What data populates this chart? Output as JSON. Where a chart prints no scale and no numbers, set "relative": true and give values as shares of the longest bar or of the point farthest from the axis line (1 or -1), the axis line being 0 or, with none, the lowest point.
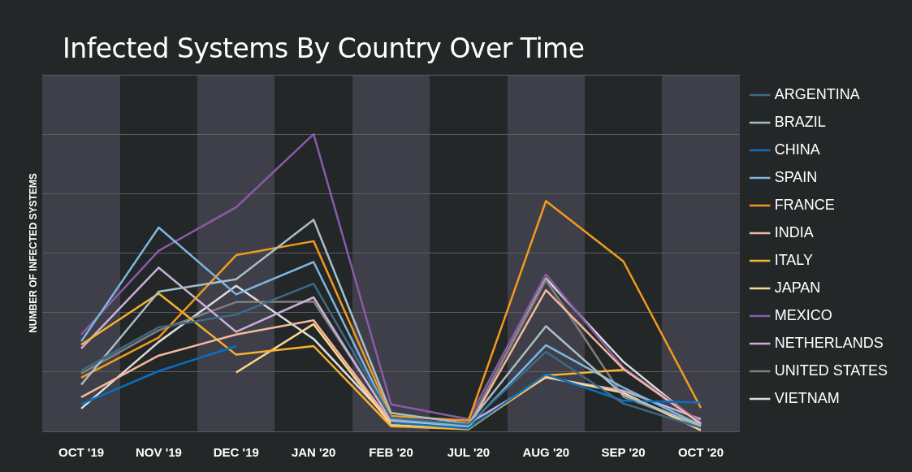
{
  "chart_data": {
    "type": "line",
    "title": "Infected Systems By Country Over Time",
    "ylabel": "NUMBER OF INFECTED SYSTEMS",
    "relative": true,
    "grid": "y",
    "legend": "right",
    "marker": "none",
    "line_style": "solid",
    "categories": [
      "OCT '19",
      "NOV '19",
      "DEC '19",
      "JAN '20",
      "FEB '20",
      "JUL '20",
      "AUG '20",
      "SEP '20",
      "OCT '20"
    ],
    "series": [
      {
        "name": "ARGENTINA",
        "color": "#3d6a85",
        "values": [
          0.205,
          0.35,
          0.393,
          0.497,
          0.046,
          0.023,
          0.268,
          0.094,
          0.012
        ]
      },
      {
        "name": "BRAZIL",
        "color": "#a9bfc4",
        "values": [
          0.157,
          0.47,
          0.512,
          0.712,
          0.062,
          0.026,
          0.354,
          0.123,
          0.018
        ]
      },
      {
        "name": "CHINA",
        "color": "#0a6fbf",
        "values": [
          0.092,
          0.203,
          0.287,
          null,
          0.03,
          0.01,
          0.192,
          0.103,
          0.097
        ]
      },
      {
        "name": "SPAIN",
        "color": "#7db6e0",
        "values": [
          0.303,
          0.686,
          0.461,
          0.57,
          0.041,
          0.017,
          0.29,
          0.147,
          0.02
        ]
      },
      {
        "name": "FRANCE",
        "color": "#f39a1e",
        "values": [
          0.181,
          0.316,
          0.593,
          0.64,
          0.052,
          0.036,
          0.775,
          0.572,
          0.079
        ]
      },
      {
        "name": "INDIA",
        "color": "#f5b89a",
        "values": [
          0.115,
          0.255,
          0.326,
          0.374,
          0.031,
          0.014,
          0.475,
          0.21,
          0.026
        ]
      },
      {
        "name": "ITALY",
        "color": "#f7b22f",
        "values": [
          0.292,
          0.464,
          0.258,
          0.287,
          0.017,
          0.007,
          0.188,
          0.207,
          null
        ]
      },
      {
        "name": "JAPAN",
        "color": "#fcd88c",
        "values": [
          null,
          null,
          0.198,
          0.361,
          0.021,
          0.01,
          0.183,
          0.13,
          0.004
        ]
      },
      {
        "name": "MEXICO",
        "color": "#8b5aa8",
        "values": [
          0.326,
          0.608,
          0.754,
          1,
          0.091,
          0.041,
          0.528,
          0.214,
          0.031
        ]
      },
      {
        "name": "NETHERLANDS",
        "color": "#c8b0d8",
        "values": [
          0.279,
          0.551,
          0.335,
          0.451,
          0.036,
          0.026,
          0.181,
          0.137,
          0.041
        ]
      },
      {
        "name": "UNITED STATES",
        "color": "#7f7f7f",
        "values": [
          0.195,
          0.34,
          0.435,
          0.437,
          0.043,
          0.023,
          0.509,
          0.116,
          0.017
        ]
      },
      {
        "name": "VIETNAM",
        "color": "#dedede",
        "values": [
          0.077,
          0.301,
          0.49,
          0.311,
          0.033,
          0.02,
          0.514,
          0.234,
          0.023
        ]
      }
    ]
  }
}
